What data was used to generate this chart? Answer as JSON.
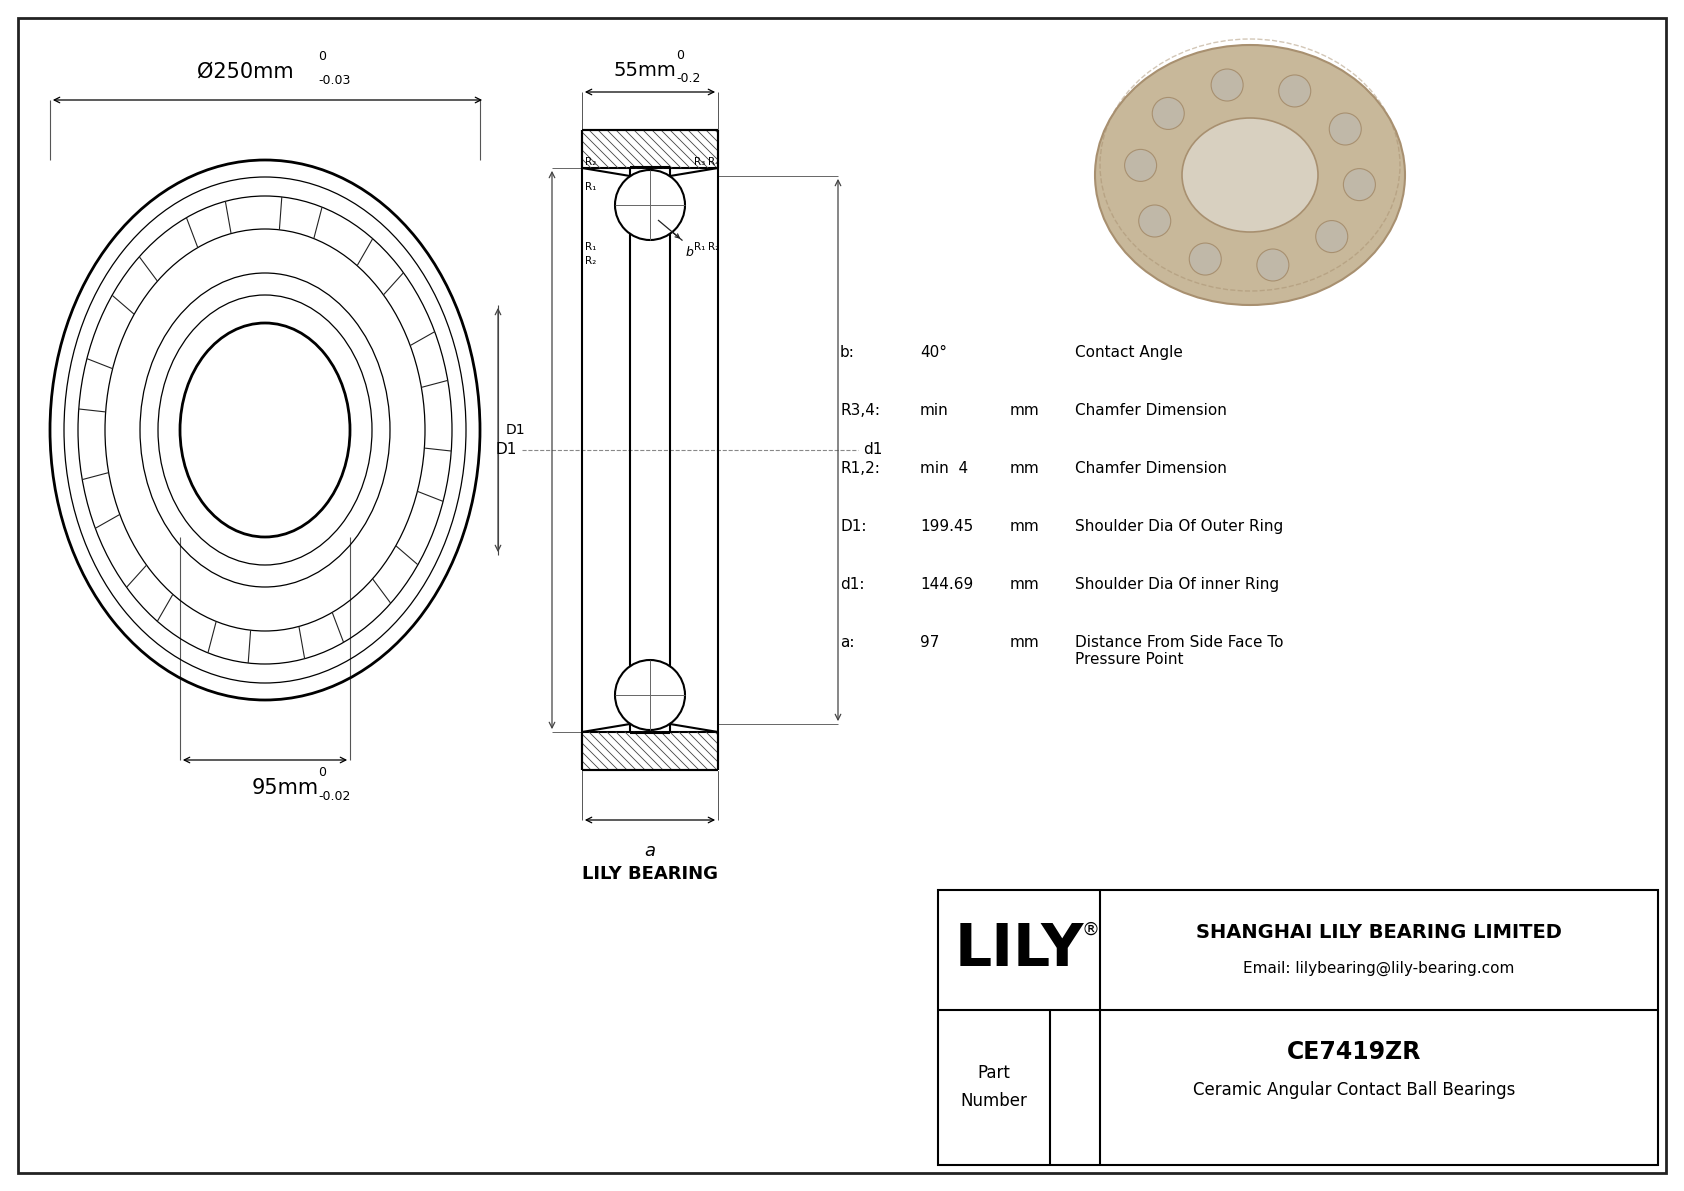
{
  "bg_color": "#ffffff",
  "line_color": "#000000",
  "outer_diameter_label": "Ø250mm",
  "outer_tol_top": "0",
  "outer_tol_bot": "-0.03",
  "inner_diameter_label": "95mm",
  "inner_tol_top": "0",
  "inner_tol_bot": "-0.02",
  "width_label": "55mm",
  "width_tol_top": "0",
  "width_tol_bot": "-0.2",
  "company_name": "LILY",
  "company_full": "SHANGHAI LILY BEARING LIMITED",
  "company_email": "Email: lilybearing@lily-bearing.com",
  "part_number": "CE7419ZR",
  "part_desc": "Ceramic Angular Contact Ball Bearings",
  "lily_bearing_label": "LILY BEARING",
  "params": [
    {
      "symbol": "b:",
      "value": "40°",
      "unit": "",
      "desc": "Contact Angle"
    },
    {
      "symbol": "R3,4:",
      "value": "min",
      "unit": "mm",
      "desc": "Chamfer Dimension"
    },
    {
      "symbol": "R1,2:",
      "value": "min  4",
      "unit": "mm",
      "desc": "Chamfer Dimension"
    },
    {
      "symbol": "D1:",
      "value": "199.45",
      "unit": "mm",
      "desc": "Shoulder Dia Of Outer Ring"
    },
    {
      "symbol": "d1:",
      "value": "144.69",
      "unit": "mm",
      "desc": "Shoulder Dia Of inner Ring"
    },
    {
      "symbol": "a:",
      "value": "97",
      "unit": "mm",
      "desc": "Distance From Side Face To\nPressure Point"
    }
  ]
}
